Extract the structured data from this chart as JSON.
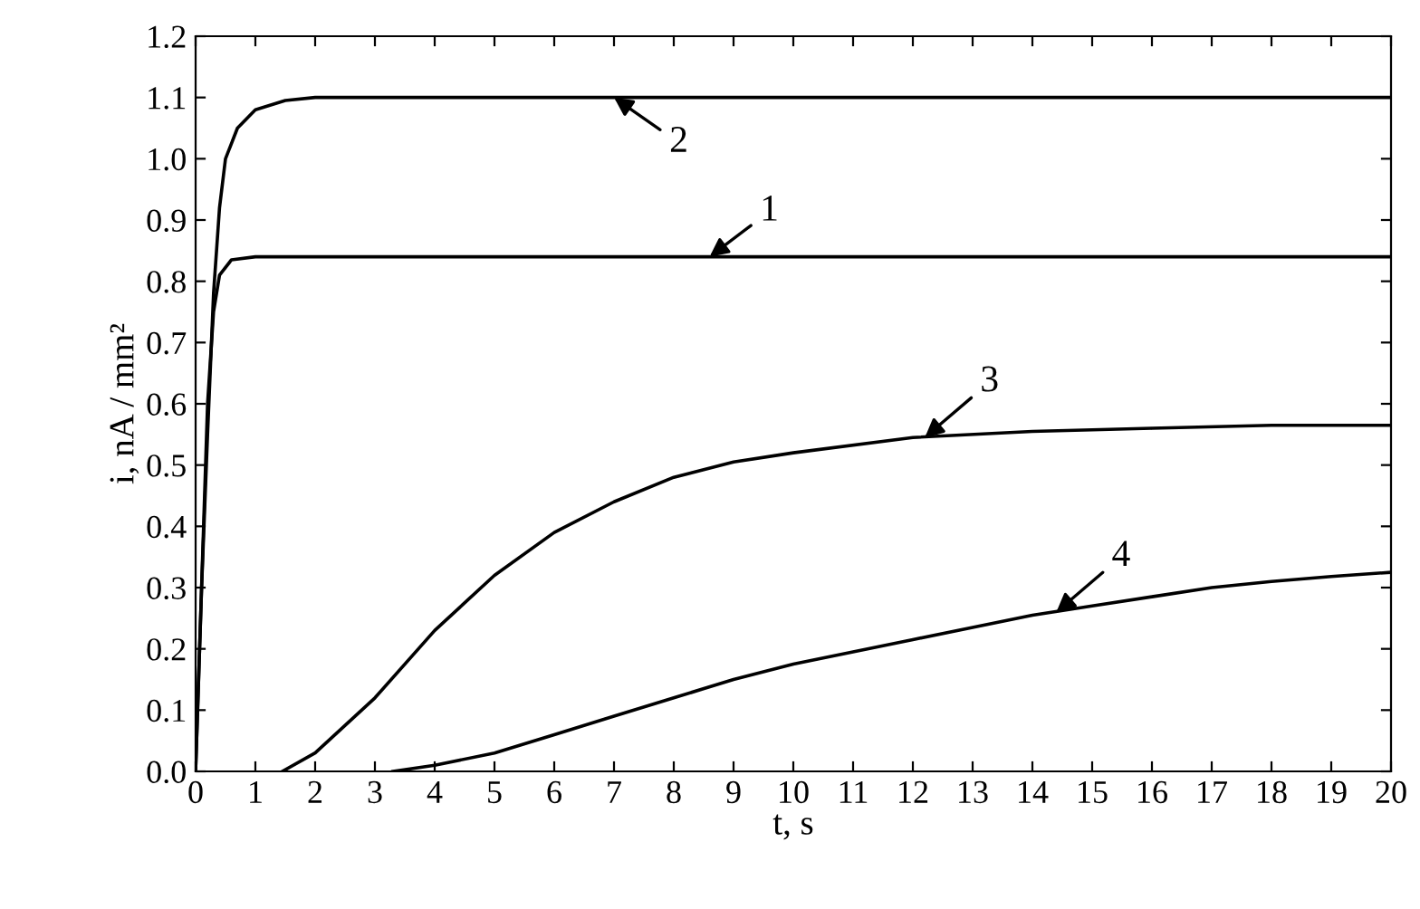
{
  "chart_data": {
    "type": "line",
    "xlabel": "t, s",
    "ylabel": "i, nA / mm²",
    "xlim": [
      0,
      20
    ],
    "xticks": [
      0,
      1,
      2,
      3,
      4,
      5,
      6,
      7,
      8,
      9,
      10,
      11,
      12,
      13,
      14,
      15,
      16,
      17,
      18,
      19,
      20
    ],
    "ylim": [
      0,
      1.2
    ],
    "yticks": [
      {
        "value": 0,
        "label": "0.0"
      },
      0.1,
      0.2,
      0.3,
      0.4,
      0.5,
      0.6,
      0.7,
      0.8,
      0.9,
      {
        "value": 1.0,
        "label": "1.0"
      },
      1.1,
      1.2
    ],
    "grid": false,
    "legend": false,
    "marker": "none",
    "line_style": "solid",
    "series": [
      {
        "color": "#000000",
        "x": [
          0,
          0.1,
          0.2,
          0.3,
          0.4,
          0.6,
          1,
          20
        ],
        "values": [
          0,
          0.3,
          0.6,
          0.75,
          0.81,
          0.835,
          0.84,
          0.84
        ]
      },
      {
        "color": "#000000",
        "x": [
          0,
          0.1,
          0.2,
          0.3,
          0.4,
          0.5,
          0.7,
          1.0,
          1.5,
          2,
          20
        ],
        "values": [
          0,
          0.3,
          0.55,
          0.78,
          0.92,
          1.0,
          1.05,
          1.08,
          1.095,
          1.1,
          1.1
        ]
      },
      {
        "color": "#000000",
        "x": [
          1.45,
          2,
          3,
          4,
          5,
          6,
          7,
          8,
          9,
          10,
          12,
          14,
          16,
          18,
          20
        ],
        "values": [
          0,
          0.03,
          0.12,
          0.23,
          0.32,
          0.39,
          0.44,
          0.48,
          0.505,
          0.52,
          0.545,
          0.555,
          0.56,
          0.565,
          0.565
        ]
      },
      {
        "color": "#000000",
        "x": [
          3.3,
          4,
          5,
          6,
          7,
          8,
          9,
          10,
          11,
          12,
          13,
          14,
          15,
          16,
          17,
          18,
          19,
          20
        ],
        "values": [
          0,
          0.01,
          0.03,
          0.06,
          0.09,
          0.12,
          0.15,
          0.175,
          0.195,
          0.215,
          0.235,
          0.255,
          0.27,
          0.285,
          0.3,
          0.31,
          0.318,
          0.325
        ]
      }
    ],
    "annotations": [
      {
        "text": "1",
        "x": 8.6,
        "y": 0.84
      },
      {
        "text": "2",
        "x": 7.0,
        "y": 1.1
      },
      {
        "text": "3",
        "x": 12.2,
        "y": 0.545
      },
      {
        "text": "4",
        "x": 14.4,
        "y": 0.26
      }
    ]
  }
}
